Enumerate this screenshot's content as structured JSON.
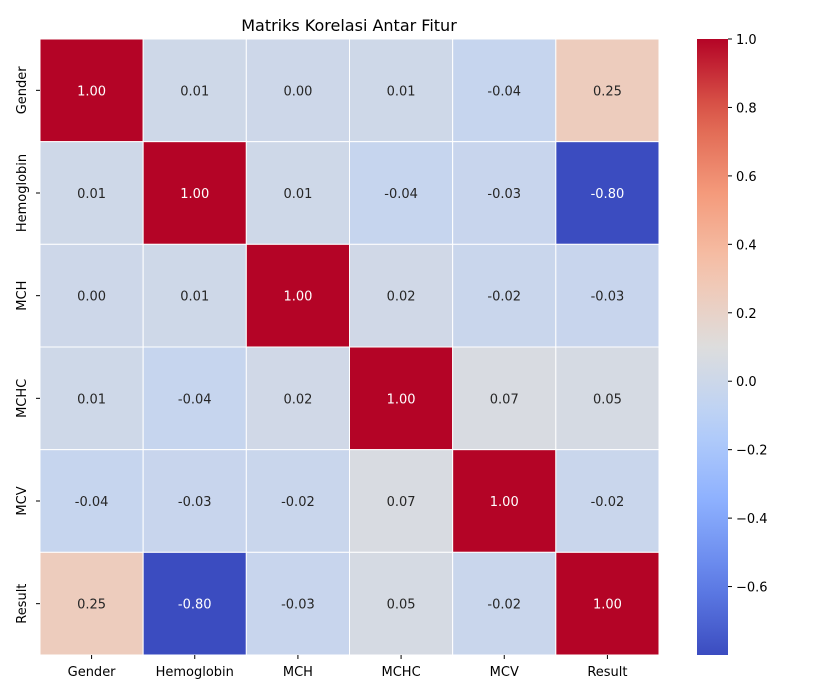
{
  "chart_data": {
    "type": "heatmap",
    "title": "Matriks Korelasi Antar Fitur",
    "xlabel": "",
    "ylabel": "",
    "x_categories": [
      "Gender",
      "Hemoglobin",
      "MCH",
      "MCHC",
      "MCV",
      "Result"
    ],
    "y_categories": [
      "Gender",
      "Hemoglobin",
      "MCH",
      "MCHC",
      "MCV",
      "Result"
    ],
    "values": [
      [
        1.0,
        0.01,
        0.0,
        0.01,
        -0.04,
        0.25
      ],
      [
        0.01,
        1.0,
        0.01,
        -0.04,
        -0.03,
        -0.8
      ],
      [
        0.0,
        0.01,
        1.0,
        0.02,
        -0.02,
        -0.03
      ],
      [
        0.01,
        -0.04,
        0.02,
        1.0,
        0.07,
        0.05
      ],
      [
        -0.04,
        -0.03,
        -0.02,
        0.07,
        1.0,
        -0.02
      ],
      [
        0.25,
        -0.8,
        -0.03,
        0.05,
        -0.02,
        1.0
      ]
    ],
    "value_format": "0.00",
    "colormap": "coolwarm",
    "colorbar": {
      "range": [
        -0.8,
        1.0
      ],
      "ticks": [
        1.0,
        0.8,
        0.6,
        0.4,
        0.2,
        0.0,
        -0.2,
        -0.4,
        -0.6
      ],
      "tick_labels": [
        "1.0",
        "0.8",
        "0.6",
        "0.4",
        "0.2",
        "0.0",
        "−0.2",
        "−0.4",
        "−0.6"
      ]
    },
    "grid": false,
    "legend": "colorbar-right"
  }
}
